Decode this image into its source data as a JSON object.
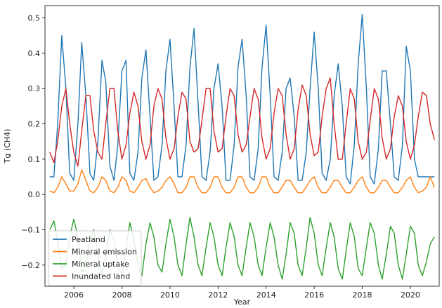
{
  "chart_data": {
    "type": "line",
    "xlabel": "Year",
    "ylabel": "Tg (CH4)",
    "xlim": [
      2004.8,
      2021.2
    ],
    "ylim": [
      -0.26,
      0.535
    ],
    "xticks": [
      2006,
      2008,
      2010,
      2012,
      2014,
      2016,
      2018,
      2020
    ],
    "yticks": [
      -0.2,
      -0.1,
      0.0,
      0.1,
      0.2,
      0.3,
      0.4,
      0.5
    ],
    "xtick_labels": [
      "2006",
      "2008",
      "2010",
      "2012",
      "2014",
      "2016",
      "2018",
      "2020"
    ],
    "ytick_labels": [
      "−0.2",
      "−0.1",
      "0.0",
      "0.1",
      "0.2",
      "0.3",
      "0.4",
      "0.5"
    ],
    "grid": false,
    "legend_position": "lower-left",
    "series": [
      {
        "name": "Peatland",
        "color": "#1f77b4",
        "x": [
          2005.0,
          2005.17,
          2005.33,
          2005.5,
          2005.67,
          2005.83,
          2006.0,
          2006.17,
          2006.33,
          2006.5,
          2006.67,
          2006.83,
          2007.0,
          2007.17,
          2007.33,
          2007.5,
          2007.67,
          2007.83,
          2008.0,
          2008.17,
          2008.33,
          2008.5,
          2008.67,
          2008.83,
          2009.0,
          2009.17,
          2009.33,
          2009.5,
          2009.67,
          2009.83,
          2010.0,
          2010.17,
          2010.33,
          2010.5,
          2010.67,
          2010.83,
          2011.0,
          2011.17,
          2011.33,
          2011.5,
          2011.67,
          2011.83,
          2012.0,
          2012.17,
          2012.33,
          2012.5,
          2012.67,
          2012.83,
          2013.0,
          2013.17,
          2013.33,
          2013.5,
          2013.67,
          2013.83,
          2014.0,
          2014.17,
          2014.33,
          2014.5,
          2014.67,
          2014.83,
          2015.0,
          2015.17,
          2015.33,
          2015.5,
          2015.67,
          2015.83,
          2016.0,
          2016.17,
          2016.33,
          2016.5,
          2016.67,
          2016.83,
          2017.0,
          2017.17,
          2017.33,
          2017.5,
          2017.67,
          2017.83,
          2018.0,
          2018.17,
          2018.33,
          2018.5,
          2018.67,
          2018.83,
          2019.0,
          2019.17,
          2019.33,
          2019.5,
          2019.67,
          2019.83,
          2020.0,
          2020.17,
          2020.33,
          2020.5,
          2020.67,
          2020.83,
          2021.0
        ],
        "values": [
          0.05,
          0.05,
          0.2,
          0.45,
          0.3,
          0.06,
          0.04,
          0.2,
          0.43,
          0.28,
          0.06,
          0.04,
          0.15,
          0.38,
          0.32,
          0.08,
          0.04,
          0.14,
          0.35,
          0.38,
          0.06,
          0.04,
          0.12,
          0.33,
          0.41,
          0.22,
          0.04,
          0.05,
          0.14,
          0.35,
          0.44,
          0.25,
          0.05,
          0.05,
          0.14,
          0.36,
          0.47,
          0.26,
          0.05,
          0.04,
          0.12,
          0.3,
          0.37,
          0.25,
          0.04,
          0.04,
          0.14,
          0.36,
          0.44,
          0.28,
          0.05,
          0.04,
          0.13,
          0.36,
          0.48,
          0.28,
          0.05,
          0.04,
          0.12,
          0.3,
          0.33,
          0.22,
          0.04,
          0.04,
          0.12,
          0.3,
          0.46,
          0.3,
          0.06,
          0.04,
          0.1,
          0.28,
          0.37,
          0.25,
          0.05,
          0.03,
          0.14,
          0.37,
          0.51,
          0.3,
          0.05,
          0.03,
          0.13,
          0.35,
          0.35,
          0.2,
          0.05,
          0.04,
          0.14,
          0.42,
          0.35,
          0.1,
          0.05,
          0.05,
          0.05,
          0.05,
          0.05
        ]
      },
      {
        "name": "Mineral emission",
        "color": "#ff7f0e",
        "x": [
          2005.0,
          2005.17,
          2005.33,
          2005.5,
          2005.67,
          2005.83,
          2006.0,
          2006.17,
          2006.33,
          2006.5,
          2006.67,
          2006.83,
          2007.0,
          2007.17,
          2007.33,
          2007.5,
          2007.67,
          2007.83,
          2008.0,
          2008.17,
          2008.33,
          2008.5,
          2008.67,
          2008.83,
          2009.0,
          2009.17,
          2009.33,
          2009.5,
          2009.67,
          2009.83,
          2010.0,
          2010.17,
          2010.33,
          2010.5,
          2010.67,
          2010.83,
          2011.0,
          2011.17,
          2011.33,
          2011.5,
          2011.67,
          2011.83,
          2012.0,
          2012.17,
          2012.33,
          2012.5,
          2012.67,
          2012.83,
          2013.0,
          2013.17,
          2013.33,
          2013.5,
          2013.67,
          2013.83,
          2014.0,
          2014.17,
          2014.33,
          2014.5,
          2014.67,
          2014.83,
          2015.0,
          2015.17,
          2015.33,
          2015.5,
          2015.67,
          2015.83,
          2016.0,
          2016.17,
          2016.33,
          2016.5,
          2016.67,
          2016.83,
          2017.0,
          2017.17,
          2017.33,
          2017.5,
          2017.67,
          2017.83,
          2018.0,
          2018.17,
          2018.33,
          2018.5,
          2018.67,
          2018.83,
          2019.0,
          2019.17,
          2019.33,
          2019.5,
          2019.67,
          2019.83,
          2020.0,
          2020.17,
          2020.33,
          2020.5,
          2020.67,
          2020.83,
          2021.0
        ],
        "values": [
          0.01,
          0.005,
          0.02,
          0.05,
          0.03,
          0.01,
          0.01,
          0.03,
          0.07,
          0.04,
          0.01,
          0.005,
          0.02,
          0.05,
          0.04,
          0.01,
          0.005,
          0.02,
          0.05,
          0.04,
          0.01,
          0.005,
          0.02,
          0.04,
          0.045,
          0.02,
          0.005,
          0.01,
          0.02,
          0.04,
          0.05,
          0.03,
          0.005,
          0.005,
          0.02,
          0.05,
          0.05,
          0.02,
          0.005,
          0.005,
          0.02,
          0.05,
          0.05,
          0.02,
          0.005,
          0.005,
          0.02,
          0.05,
          0.05,
          0.02,
          0.005,
          0.005,
          0.02,
          0.05,
          0.05,
          0.02,
          0.005,
          0.005,
          0.02,
          0.04,
          0.04,
          0.02,
          0.005,
          0.005,
          0.02,
          0.04,
          0.05,
          0.02,
          0.005,
          0.005,
          0.02,
          0.04,
          0.04,
          0.02,
          0.005,
          0.005,
          0.02,
          0.04,
          0.05,
          0.02,
          0.005,
          0.005,
          0.02,
          0.04,
          0.04,
          0.02,
          0.005,
          0.005,
          0.02,
          0.04,
          0.05,
          0.02,
          0.005,
          0.01,
          0.02,
          0.05,
          0.02
        ]
      },
      {
        "name": "Mineral uptake",
        "color": "#2ca02c",
        "x": [
          2005.0,
          2005.17,
          2005.33,
          2005.5,
          2005.67,
          2005.83,
          2006.0,
          2006.17,
          2006.33,
          2006.5,
          2006.67,
          2006.83,
          2007.0,
          2007.17,
          2007.33,
          2007.5,
          2007.67,
          2007.83,
          2008.0,
          2008.17,
          2008.33,
          2008.5,
          2008.67,
          2008.83,
          2009.0,
          2009.17,
          2009.33,
          2009.5,
          2009.67,
          2009.83,
          2010.0,
          2010.17,
          2010.33,
          2010.5,
          2010.67,
          2010.83,
          2011.0,
          2011.17,
          2011.33,
          2011.5,
          2011.67,
          2011.83,
          2012.0,
          2012.17,
          2012.33,
          2012.5,
          2012.67,
          2012.83,
          2013.0,
          2013.17,
          2013.33,
          2013.5,
          2013.67,
          2013.83,
          2014.0,
          2014.17,
          2014.33,
          2014.5,
          2014.67,
          2014.83,
          2015.0,
          2015.17,
          2015.33,
          2015.5,
          2015.67,
          2015.83,
          2016.0,
          2016.17,
          2016.33,
          2016.5,
          2016.67,
          2016.83,
          2017.0,
          2017.17,
          2017.33,
          2017.5,
          2017.67,
          2017.83,
          2018.0,
          2018.17,
          2018.33,
          2018.5,
          2018.67,
          2018.83,
          2019.0,
          2019.17,
          2019.33,
          2019.5,
          2019.67,
          2019.83,
          2020.0,
          2020.17,
          2020.33,
          2020.5,
          2020.67,
          2020.83,
          2021.0
        ],
        "values": [
          -0.1,
          -0.075,
          -0.13,
          -0.21,
          -0.2,
          -0.12,
          -0.07,
          -0.12,
          -0.22,
          -0.2,
          -0.12,
          -0.1,
          -0.17,
          -0.23,
          -0.17,
          -0.1,
          -0.13,
          -0.2,
          -0.23,
          -0.15,
          -0.08,
          -0.13,
          -0.2,
          -0.23,
          -0.14,
          -0.08,
          -0.12,
          -0.2,
          -0.22,
          -0.14,
          -0.07,
          -0.12,
          -0.2,
          -0.23,
          -0.14,
          -0.065,
          -0.12,
          -0.2,
          -0.23,
          -0.15,
          -0.08,
          -0.12,
          -0.2,
          -0.23,
          -0.15,
          -0.08,
          -0.12,
          -0.2,
          -0.23,
          -0.15,
          -0.08,
          -0.12,
          -0.2,
          -0.23,
          -0.15,
          -0.08,
          -0.12,
          -0.2,
          -0.24,
          -0.17,
          -0.08,
          -0.11,
          -0.2,
          -0.23,
          -0.15,
          -0.065,
          -0.11,
          -0.2,
          -0.23,
          -0.15,
          -0.08,
          -0.12,
          -0.21,
          -0.24,
          -0.16,
          -0.08,
          -0.12,
          -0.21,
          -0.23,
          -0.15,
          -0.08,
          -0.11,
          -0.2,
          -0.24,
          -0.17,
          -0.09,
          -0.11,
          -0.2,
          -0.24,
          -0.17,
          -0.09,
          -0.11,
          -0.2,
          -0.23,
          -0.19,
          -0.14,
          -0.12
        ]
      },
      {
        "name": "Inundated land",
        "color": "#d62728",
        "x": [
          2005.0,
          2005.17,
          2005.33,
          2005.5,
          2005.67,
          2005.83,
          2006.0,
          2006.17,
          2006.33,
          2006.5,
          2006.67,
          2006.83,
          2007.0,
          2007.17,
          2007.33,
          2007.5,
          2007.67,
          2007.83,
          2008.0,
          2008.17,
          2008.33,
          2008.5,
          2008.67,
          2008.83,
          2009.0,
          2009.17,
          2009.33,
          2009.5,
          2009.67,
          2009.83,
          2010.0,
          2010.17,
          2010.33,
          2010.5,
          2010.67,
          2010.83,
          2011.0,
          2011.17,
          2011.33,
          2011.5,
          2011.67,
          2011.83,
          2012.0,
          2012.17,
          2012.33,
          2012.5,
          2012.67,
          2012.83,
          2013.0,
          2013.17,
          2013.33,
          2013.5,
          2013.67,
          2013.83,
          2014.0,
          2014.17,
          2014.33,
          2014.5,
          2014.67,
          2014.83,
          2015.0,
          2015.17,
          2015.33,
          2015.5,
          2015.67,
          2015.83,
          2016.0,
          2016.17,
          2016.33,
          2016.5,
          2016.67,
          2016.83,
          2017.0,
          2017.17,
          2017.33,
          2017.5,
          2017.67,
          2017.83,
          2018.0,
          2018.17,
          2018.33,
          2018.5,
          2018.67,
          2018.83,
          2019.0,
          2019.17,
          2019.33,
          2019.5,
          2019.67,
          2019.83,
          2020.0,
          2020.17,
          2020.33,
          2020.5,
          2020.67,
          2020.83,
          2021.0
        ],
        "values": [
          0.12,
          0.09,
          0.15,
          0.25,
          0.3,
          0.2,
          0.12,
          0.08,
          0.18,
          0.28,
          0.28,
          0.18,
          0.12,
          0.1,
          0.2,
          0.3,
          0.3,
          0.18,
          0.1,
          0.14,
          0.23,
          0.29,
          0.25,
          0.15,
          0.1,
          0.14,
          0.25,
          0.3,
          0.27,
          0.16,
          0.1,
          0.13,
          0.22,
          0.29,
          0.27,
          0.15,
          0.12,
          0.13,
          0.21,
          0.3,
          0.3,
          0.18,
          0.12,
          0.13,
          0.22,
          0.3,
          0.28,
          0.17,
          0.12,
          0.14,
          0.22,
          0.3,
          0.27,
          0.16,
          0.1,
          0.13,
          0.23,
          0.3,
          0.28,
          0.17,
          0.1,
          0.13,
          0.24,
          0.31,
          0.28,
          0.17,
          0.11,
          0.12,
          0.22,
          0.3,
          0.33,
          0.2,
          0.1,
          0.1,
          0.2,
          0.3,
          0.27,
          0.15,
          0.1,
          0.12,
          0.21,
          0.3,
          0.27,
          0.16,
          0.1,
          0.13,
          0.22,
          0.28,
          0.25,
          0.15,
          0.1,
          0.14,
          0.22,
          0.29,
          0.28,
          0.2,
          0.155
        ]
      }
    ]
  }
}
